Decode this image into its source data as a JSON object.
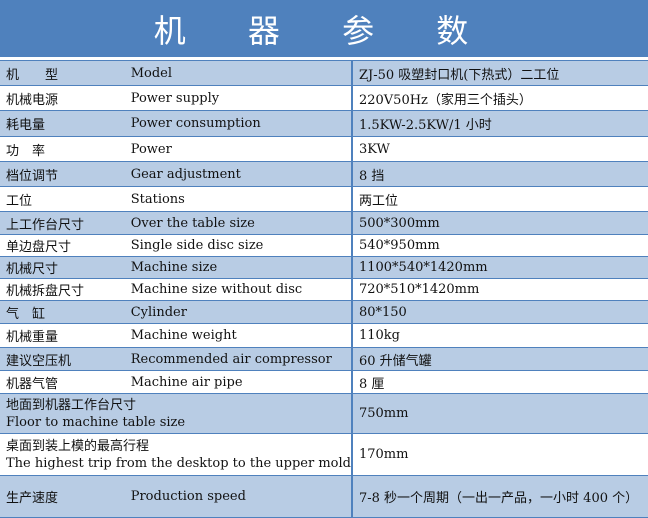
{
  "title": "机 器 参 数",
  "rows": [
    {
      "cn": "机　　型",
      "en": "Model",
      "value": "ZJ-50 吸塑封口机(下热式）二工位"
    },
    {
      "cn": "机械电源",
      "en": "Power supply",
      "value": "220V50Hz（家用三个插头）"
    },
    {
      "cn": "耗电量",
      "en": "Power consumption",
      "value": "1.5KW-2.5KW/1 小时"
    },
    {
      "cn": "功　率",
      "en": "Power",
      "value": "3KW"
    },
    {
      "cn": "档位调节",
      "en": "Gear adjustment",
      "value": "8 挡"
    },
    {
      "cn": "工位",
      "en": "Stations",
      "value": "两工位"
    },
    {
      "cn": "上工作台尺寸",
      "en": "Over the table size",
      "value": "500*300mm"
    },
    {
      "cn": "单边盘尺寸",
      "en": "Single side disc size",
      "value": "540*950mm"
    },
    {
      "cn": "机械尺寸",
      "en": "Machine size",
      "value": "1100*540*1420mm"
    },
    {
      "cn": "机械拆盘尺寸",
      "en": "Machine size without disc",
      "value": "720*510*1420mm"
    },
    {
      "cn": "气　缸",
      "en": "Cylinder",
      "value": "80*150"
    },
    {
      "cn": "机械重量",
      "en": "Machine weight",
      "value": "110kg"
    },
    {
      "cn": "建议空压机",
      "en": "Recommended air compressor",
      "value": "60 升储气罐"
    },
    {
      "cn": "机器气管",
      "en": "Machine air pipe",
      "value": "8 厘"
    },
    {
      "cn": "地面到机器工作台尺寸",
      "en": "Floor to machine table size",
      "value": "750mm"
    },
    {
      "cn": "桌面到装上模的最高行程",
      "en": "The highest trip from the desktop to the upper mold",
      "value": "170mm"
    },
    {
      "cn": "生产速度",
      "en": "Production speed",
      "value": "7-8 秒一个周期（一出一产品，一小时 400 个）"
    }
  ],
  "colors": {
    "header": "#4F81BD",
    "alt_row": "#B8CCE4"
  }
}
